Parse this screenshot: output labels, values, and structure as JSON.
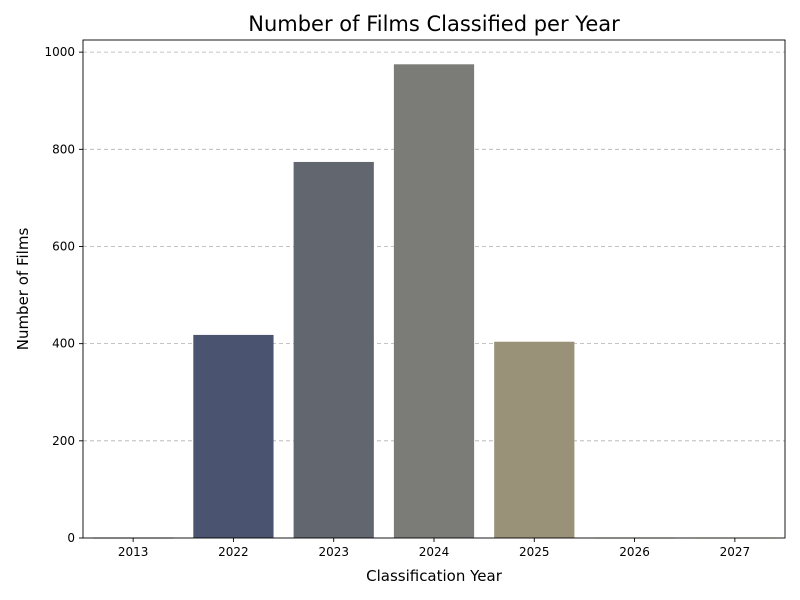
{
  "chart_data": {
    "type": "bar",
    "title": "Number of Films Classified per Year",
    "xlabel": "Classification Year",
    "ylabel": "Number of Films",
    "categories": [
      "2013",
      "2022",
      "2023",
      "2024",
      "2025",
      "2026",
      "2027"
    ],
    "values": [
      1,
      418,
      774,
      975,
      404,
      1,
      1
    ],
    "colors": [
      "#1f2a4e",
      "#4a5470",
      "#62666e",
      "#7b7b78",
      "#999279",
      "#b8ac6e",
      "#e6d65a"
    ],
    "ylim": [
      0,
      1025
    ],
    "yticks": [
      0,
      200,
      400,
      600,
      800,
      1000
    ],
    "grid": "y-dashed",
    "legend": "none"
  }
}
